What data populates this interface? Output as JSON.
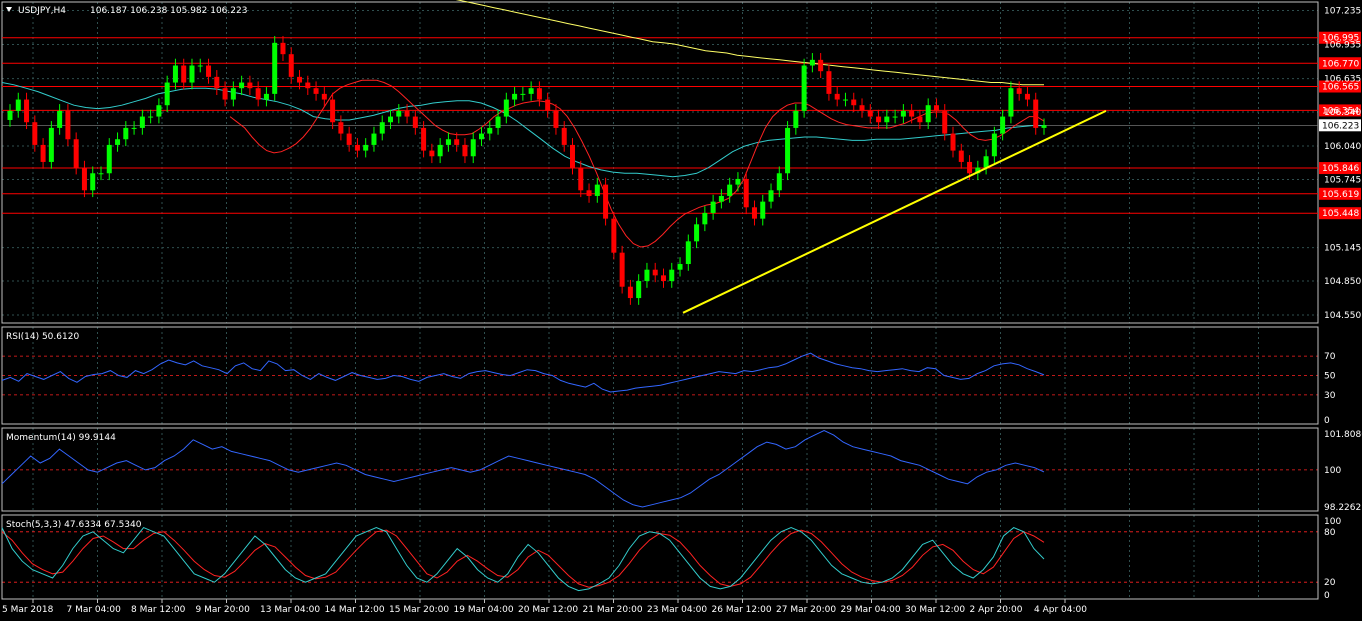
{
  "header": {
    "symbol": "USDJPY,H4",
    "ohlc": "106.187 106.238 105.982 106.223"
  },
  "colors": {
    "background": "#000000",
    "grid": "#2f4f4f",
    "bull_candle": "#00ff00",
    "bear_candle": "#ff0000",
    "level_line": "#ff0000",
    "ma_slow": "#ffff66",
    "ma_mid": "#33cccc",
    "ma_fast": "#ff2222",
    "trendline": "#ffff00",
    "indicator_line": "#3366ff",
    "stoch_signal": "#ff2222",
    "stoch_main": "#33cccc",
    "axis_text": "#ffffff"
  },
  "chart_data": [
    {
      "type": "candlestick",
      "pane": "price",
      "title": "USDJPY,H4 106.187 106.238 105.982 106.223",
      "ylim": [
        104.48,
        107.31
      ],
      "y_ticks": [
        "107.235",
        "106.935",
        "106.635",
        "106.340",
        "106.040",
        "105.745",
        "105.145",
        "104.850",
        "104.550"
      ],
      "current_price": "106.223",
      "horizontal_levels": [
        "106.995",
        "106.770",
        "106.565",
        "106.354",
        "105.846",
        "105.619",
        "105.448"
      ],
      "x_tick_labels": [
        "5 Mar 2018",
        "7 Mar 04:00",
        "8 Mar 12:00",
        "9 Mar 20:00",
        "13 Mar 04:00",
        "14 Mar 12:00",
        "15 Mar 20:00",
        "19 Mar 04:00",
        "20 Mar 12:00",
        "21 Mar 20:00",
        "23 Mar 04:00",
        "26 Mar 12:00",
        "27 Mar 20:00",
        "29 Mar 04:00",
        "30 Mar 12:00",
        "2 Apr 20:00",
        "4 Apr 04:00"
      ],
      "closes": [
        106.35,
        106.45,
        106.25,
        106.05,
        105.9,
        106.2,
        106.35,
        106.1,
        105.85,
        105.65,
        105.8,
        105.8,
        106.05,
        106.1,
        106.2,
        106.2,
        106.3,
        106.3,
        106.4,
        106.6,
        106.75,
        106.6,
        106.75,
        106.75,
        106.65,
        106.55,
        106.45,
        106.55,
        106.6,
        106.55,
        106.45,
        106.5,
        106.95,
        106.85,
        106.65,
        106.6,
        106.55,
        106.5,
        106.45,
        106.25,
        106.15,
        106.05,
        106.0,
        106.05,
        106.15,
        106.25,
        106.3,
        106.35,
        106.3,
        106.2,
        106.0,
        105.95,
        106.05,
        106.1,
        106.05,
        105.95,
        106.1,
        106.15,
        106.2,
        106.3,
        106.45,
        106.5,
        106.5,
        106.55,
        106.45,
        106.35,
        106.2,
        106.05,
        105.85,
        105.65,
        105.6,
        105.7,
        105.4,
        105.1,
        104.8,
        104.7,
        104.85,
        104.95,
        104.9,
        104.85,
        104.95,
        105.0,
        105.2,
        105.35,
        105.45,
        105.55,
        105.6,
        105.7,
        105.75,
        105.5,
        105.4,
        105.55,
        105.65,
        105.8,
        106.2,
        106.35,
        106.75,
        106.8,
        106.7,
        106.5,
        106.45,
        106.45,
        106.4,
        106.35,
        106.3,
        106.25,
        106.3,
        106.3,
        106.35,
        106.3,
        106.25,
        106.4,
        106.35,
        106.15,
        106.0,
        105.9,
        105.8,
        105.85,
        105.95,
        106.15,
        106.3,
        106.55,
        106.5,
        106.45,
        106.2,
        106.223
      ],
      "ma_slow": [
        107.4,
        107.38,
        107.36,
        107.34,
        107.32,
        107.3,
        107.28,
        107.26,
        107.24,
        107.22,
        107.2,
        107.18,
        107.16,
        107.14,
        107.12,
        107.1,
        107.08,
        107.06,
        107.04,
        107.02,
        107.0,
        106.98,
        106.96,
        106.95,
        106.94,
        106.92,
        106.9,
        106.88,
        106.87,
        106.86,
        106.84,
        106.83,
        106.82,
        106.81,
        106.8,
        106.79,
        106.78,
        106.77,
        106.76,
        106.75,
        106.74,
        106.73,
        106.72,
        106.71,
        106.7,
        106.69,
        106.68,
        106.67,
        106.66,
        106.65,
        106.64,
        106.63,
        106.62,
        106.61,
        106.6,
        106.6,
        106.59,
        106.58,
        106.58,
        106.58
      ],
      "ma_mid": [
        106.6,
        106.58,
        106.55,
        106.52,
        106.48,
        106.44,
        106.4,
        106.38,
        106.37,
        106.38,
        106.4,
        106.43,
        106.46,
        106.5,
        106.52,
        106.54,
        106.55,
        106.55,
        106.54,
        106.52,
        106.5,
        106.47,
        106.45,
        106.43,
        106.4,
        106.36,
        106.3,
        106.28,
        106.27,
        106.27,
        106.29,
        106.31,
        106.34,
        106.37,
        106.39,
        106.4,
        106.42,
        106.43,
        106.44,
        106.44,
        106.42,
        106.38,
        106.33,
        106.26,
        106.18,
        106.1,
        106.02,
        105.95,
        105.9,
        105.86,
        105.83,
        105.81,
        105.8,
        105.8,
        105.79,
        105.78,
        105.77,
        105.78,
        105.8,
        105.85,
        105.92,
        105.99,
        106.04,
        106.07,
        106.09,
        106.1,
        106.11,
        106.12,
        106.12,
        106.11,
        106.1,
        106.09,
        106.09,
        106.1,
        106.1,
        106.1,
        106.11,
        106.12,
        106.13,
        106.14,
        106.15,
        106.16,
        106.17,
        106.18,
        106.2,
        106.21,
        106.22,
        106.22
      ],
      "ma_fast": [
        106.3,
        106.25,
        106.2,
        106.12,
        106.05,
        106.0,
        105.98,
        105.99,
        106.02,
        106.06,
        106.12,
        106.2,
        106.3,
        106.4,
        106.5,
        106.55,
        106.58,
        106.6,
        106.62,
        106.62,
        106.62,
        106.6,
        106.57,
        106.52,
        106.46,
        106.4,
        106.34,
        106.28,
        106.22,
        106.18,
        106.15,
        106.14,
        106.14,
        106.15,
        106.19,
        106.24,
        106.3,
        106.34,
        106.37,
        106.4,
        106.42,
        106.43,
        106.44,
        106.43,
        106.41,
        106.37,
        106.3,
        106.2,
        106.08,
        105.95,
        105.8,
        105.64,
        105.48,
        105.35,
        105.25,
        105.18,
        105.15,
        105.16,
        105.2,
        105.26,
        105.33,
        105.39,
        105.44,
        105.47,
        105.5,
        105.52,
        105.53,
        105.55,
        105.58,
        105.64,
        105.74,
        105.9,
        106.06,
        106.2,
        106.3,
        106.36,
        106.4,
        106.42,
        106.42,
        106.4,
        106.36,
        106.32,
        106.28,
        106.25,
        106.23,
        106.22,
        106.21,
        106.2,
        106.2,
        106.2,
        106.2,
        106.22,
        106.24,
        106.27,
        106.3,
        106.33,
        106.34,
        106.34,
        106.32,
        106.27,
        106.2,
        106.14,
        106.1,
        106.09,
        106.1,
        106.13,
        106.17,
        106.22,
        106.26,
        106.3,
        106.3,
        106.26
      ],
      "trendline": {
        "from": 104.57,
        "to": 106.35
      }
    },
    {
      "type": "line",
      "pane": "rsi",
      "title": "RSI(14) 50.6120",
      "ylim": [
        0,
        100
      ],
      "y_ticks": [
        "70",
        "50",
        "30",
        "0"
      ],
      "levels": [
        70,
        50,
        30
      ],
      "values": [
        45,
        48,
        44,
        52,
        49,
        46,
        50,
        54,
        47,
        43,
        49,
        51,
        52,
        55,
        50,
        48,
        55,
        52,
        56,
        62,
        66,
        63,
        61,
        65,
        60,
        58,
        56,
        52,
        60,
        63,
        57,
        55,
        65,
        62,
        55,
        56,
        50,
        46,
        52,
        48,
        45,
        49,
        53,
        50,
        48,
        46,
        47,
        50,
        49,
        46,
        44,
        48,
        50,
        52,
        49,
        47,
        52,
        54,
        55,
        53,
        51,
        50,
        53,
        56,
        55,
        52,
        50,
        45,
        42,
        40,
        38,
        42,
        36,
        33,
        34,
        35,
        37,
        38,
        39,
        40,
        42,
        44,
        46,
        48,
        50,
        52,
        54,
        53,
        52,
        55,
        54,
        56,
        58,
        59,
        62,
        66,
        70,
        73,
        68,
        65,
        62,
        60,
        58,
        57,
        55,
        54,
        55,
        56,
        57,
        55,
        54,
        58,
        57,
        50,
        48,
        46,
        47,
        52,
        55,
        60,
        62,
        63,
        61,
        57,
        54,
        50.6
      ]
    },
    {
      "type": "line",
      "pane": "momentum",
      "title": "Momentum(14) 99.9144",
      "ylim": [
        98.2262,
        101.8086
      ],
      "y_ticks": [
        "101.8086",
        "100",
        "98.2262"
      ],
      "levels": [
        100
      ],
      "values": [
        99.4,
        99.8,
        100.2,
        100.6,
        100.3,
        100.5,
        100.9,
        100.6,
        100.3,
        100.0,
        99.9,
        100.1,
        100.3,
        100.4,
        100.2,
        100.0,
        100.1,
        100.4,
        100.6,
        100.9,
        101.3,
        101.1,
        100.9,
        101.0,
        100.8,
        100.7,
        100.6,
        100.5,
        100.4,
        100.2,
        100.0,
        99.9,
        100.0,
        100.1,
        100.2,
        100.3,
        100.2,
        100.0,
        99.8,
        99.7,
        99.6,
        99.5,
        99.6,
        99.7,
        99.8,
        99.9,
        100.0,
        100.1,
        100.0,
        99.9,
        100.0,
        100.2,
        100.4,
        100.6,
        100.5,
        100.4,
        100.3,
        100.2,
        100.1,
        100.0,
        99.9,
        99.8,
        99.6,
        99.3,
        99.0,
        98.7,
        98.5,
        98.4,
        98.5,
        98.6,
        98.7,
        98.8,
        99.0,
        99.3,
        99.6,
        99.8,
        100.1,
        100.4,
        100.7,
        101.0,
        101.2,
        101.1,
        100.9,
        101.0,
        101.3,
        101.5,
        101.7,
        101.5,
        101.2,
        101.0,
        100.9,
        100.8,
        100.7,
        100.6,
        100.4,
        100.3,
        100.2,
        100.0,
        99.8,
        99.6,
        99.5,
        99.4,
        99.7,
        99.9,
        100.0,
        100.2,
        100.3,
        100.2,
        100.1,
        99.914
      ]
    },
    {
      "type": "line",
      "pane": "stochastic",
      "title": "Stoch(5,3,3) 47.6334 67.5340",
      "ylim": [
        0,
        100
      ],
      "y_ticks": [
        "100",
        "80",
        "20",
        "0"
      ],
      "levels": [
        80,
        20
      ],
      "main": [
        85,
        60,
        45,
        35,
        30,
        25,
        40,
        60,
        75,
        80,
        70,
        60,
        55,
        70,
        85,
        80,
        75,
        60,
        45,
        30,
        25,
        20,
        30,
        45,
        60,
        75,
        65,
        50,
        35,
        25,
        20,
        25,
        30,
        45,
        60,
        75,
        80,
        85,
        80,
        60,
        40,
        25,
        20,
        30,
        45,
        60,
        50,
        35,
        25,
        20,
        30,
        50,
        65,
        55,
        40,
        25,
        15,
        10,
        12,
        18,
        25,
        40,
        60,
        75,
        80,
        78,
        70,
        55,
        40,
        25,
        15,
        12,
        15,
        25,
        40,
        55,
        70,
        80,
        85,
        80,
        70,
        55,
        40,
        30,
        25,
        20,
        18,
        20,
        25,
        35,
        50,
        65,
        70,
        55,
        40,
        30,
        25,
        35,
        50,
        75,
        85,
        80,
        60,
        47.6
      ],
      "signal": [
        80,
        70,
        55,
        42,
        35,
        30,
        32,
        45,
        60,
        72,
        75,
        68,
        60,
        60,
        70,
        78,
        80,
        70,
        58,
        45,
        35,
        28,
        26,
        33,
        45,
        58,
        66,
        62,
        50,
        38,
        28,
        24,
        26,
        32,
        45,
        58,
        70,
        80,
        82,
        75,
        60,
        45,
        30,
        25,
        32,
        45,
        52,
        45,
        36,
        28,
        26,
        35,
        50,
        58,
        52,
        40,
        28,
        18,
        14,
        16,
        20,
        28,
        42,
        58,
        70,
        78,
        76,
        68,
        55,
        40,
        28,
        18,
        15,
        18,
        26,
        40,
        55,
        68,
        78,
        82,
        78,
        68,
        55,
        42,
        32,
        26,
        22,
        20,
        22,
        28,
        38,
        52,
        62,
        65,
        58,
        45,
        35,
        30,
        38,
        55,
        72,
        80,
        75,
        67.5
      ]
    }
  ]
}
